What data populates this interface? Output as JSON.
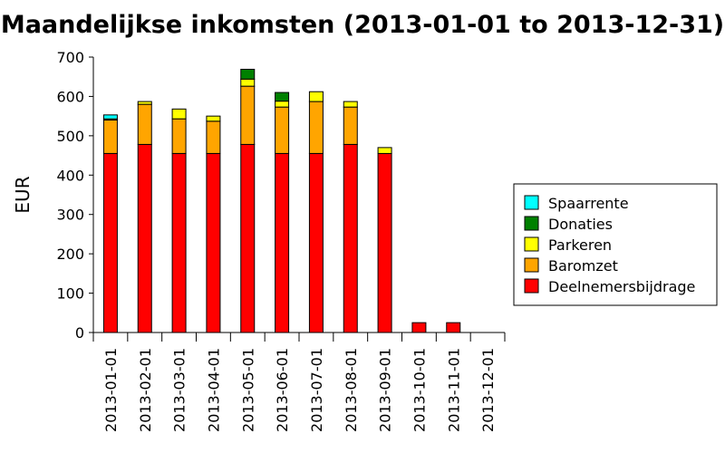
{
  "chart_data": {
    "type": "bar",
    "stacked": true,
    "title": "Maandelijkse inkomsten (2013-01-01 to 2013-12-31)",
    "xlabel": "",
    "ylabel": "EUR",
    "ylim": [
      0,
      700
    ],
    "yticks": [
      0,
      100,
      200,
      300,
      400,
      500,
      600,
      700
    ],
    "grid": false,
    "legend_position": "right",
    "categories": [
      "2013-01-01",
      "2013-02-01",
      "2013-03-01",
      "2013-04-01",
      "2013-05-01",
      "2013-06-01",
      "2013-07-01",
      "2013-08-01",
      "2013-09-01",
      "2013-10-01",
      "2013-11-01",
      "2013-12-01"
    ],
    "series": [
      {
        "name": "Deelnemersbijdrage",
        "color": "#ff0000",
        "values": [
          455,
          478,
          455,
          455,
          478,
          455,
          455,
          478,
          455,
          25,
          25,
          0
        ]
      },
      {
        "name": "Baromzet",
        "color": "#ffa500",
        "values": [
          85,
          102,
          88,
          82,
          148,
          118,
          132,
          95,
          0,
          0,
          0,
          0
        ]
      },
      {
        "name": "Parkeren",
        "color": "#ffff00",
        "values": [
          3,
          7,
          25,
          13,
          18,
          15,
          25,
          14,
          15,
          0,
          0,
          0
        ]
      },
      {
        "name": "Donaties",
        "color": "#008000",
        "values": [
          0,
          0,
          0,
          0,
          25,
          22,
          0,
          0,
          0,
          0,
          0,
          0
        ]
      },
      {
        "name": "Spaarrente",
        "color": "#00ffff",
        "values": [
          10,
          0,
          0,
          0,
          0,
          0,
          0,
          0,
          0,
          0,
          0,
          0
        ]
      }
    ],
    "legend_order": [
      "Spaarrente",
      "Donaties",
      "Parkeren",
      "Baromzet",
      "Deelnemersbijdrage"
    ]
  }
}
